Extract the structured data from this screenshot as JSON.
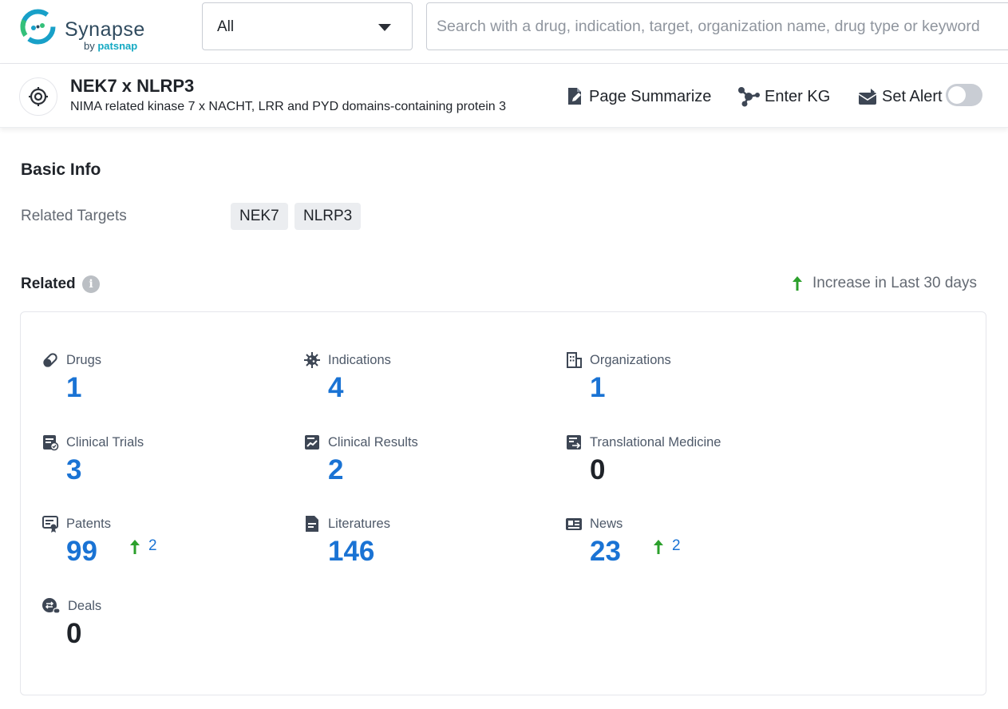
{
  "brand": {
    "name": "Synapse",
    "by": "by ",
    "by_brand": "patsnap"
  },
  "search": {
    "scope": "All",
    "placeholder": "Search with a drug, indication, target, organization name, drug type or keyword"
  },
  "entity": {
    "title": "NEK7 x NLRP3",
    "subtitle": "NIMA related kinase 7 x NACHT, LRR and PYD domains-containing protein 3",
    "actions": {
      "summarize": "Page Summarize",
      "kg": "Enter KG",
      "alert": "Set Alert"
    },
    "alert_enabled": false
  },
  "basic_info": {
    "title": "Basic Info",
    "related_targets_label": "Related Targets",
    "targets": [
      "NEK7",
      "NLRP3"
    ]
  },
  "related": {
    "title": "Related",
    "legend": "Increase in Last 30 days",
    "stats": [
      {
        "label": "Drugs",
        "value": "1",
        "icon": "pill-icon"
      },
      {
        "label": "Indications",
        "value": "4",
        "icon": "virus-icon"
      },
      {
        "label": "Organizations",
        "value": "1",
        "icon": "building-icon"
      },
      {
        "label": "Clinical Trials",
        "value": "3",
        "icon": "clinical-trial-icon"
      },
      {
        "label": "Clinical Results",
        "value": "2",
        "icon": "clinical-result-icon"
      },
      {
        "label": "Translational Medicine",
        "value": "0",
        "icon": "translational-medicine-icon"
      },
      {
        "label": "Patents",
        "value": "99",
        "increase": "2",
        "icon": "patent-icon"
      },
      {
        "label": "Literatures",
        "value": "146",
        "icon": "literature-icon"
      },
      {
        "label": "News",
        "value": "23",
        "increase": "2",
        "icon": "news-icon"
      },
      {
        "label": "Deals",
        "value": "0",
        "icon": "deal-icon"
      }
    ]
  },
  "colors": {
    "link_blue": "#1a73d4",
    "increase_green": "#2ca02c",
    "label_gray": "#646a73",
    "brand_teal": "#14a9c3"
  }
}
